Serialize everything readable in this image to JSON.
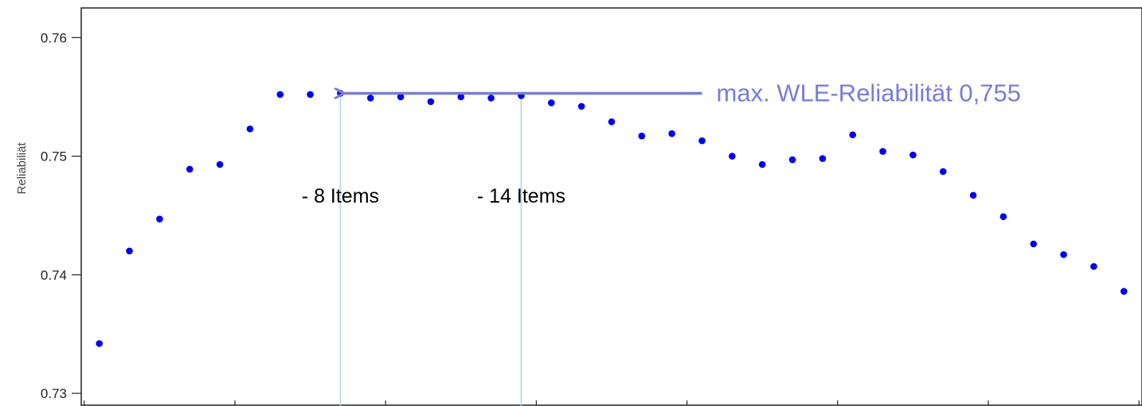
{
  "chart_data": {
    "type": "scatter",
    "xlabel": "",
    "ylabel": "Reliabiliät",
    "ylim": [
      0.729,
      0.7625
    ],
    "xlim": [
      0.4,
      35.6
    ],
    "y_ticks": [
      0.73,
      0.74,
      0.75,
      0.76
    ],
    "y_tick_labels": [
      "0.73",
      "0.74",
      "0.75",
      "0.76"
    ],
    "x_ticks": [
      0.5,
      5.5,
      10.5,
      15.5,
      20.5,
      25.5,
      30.5,
      35.5
    ],
    "grid": false,
    "legend": "none",
    "point_color": "#0000ee",
    "series": [
      {
        "x": [
          1,
          2,
          3,
          4,
          5,
          6,
          7,
          8,
          9,
          10,
          11,
          12,
          13,
          14,
          15,
          16,
          17,
          18,
          19,
          20,
          21,
          22,
          23,
          24,
          25,
          26,
          27,
          28,
          29,
          30,
          31,
          32,
          33,
          34,
          35
        ],
        "values": [
          0.7342,
          0.742,
          0.7447,
          0.7489,
          0.7493,
          0.7523,
          0.7552,
          0.7552,
          0.7553,
          0.7549,
          0.755,
          0.7546,
          0.755,
          0.7549,
          0.7551,
          0.7545,
          0.7542,
          0.7529,
          0.7517,
          0.7519,
          0.7513,
          0.75,
          0.7493,
          0.7497,
          0.7498,
          0.7518,
          0.7504,
          0.7501,
          0.7487,
          0.7467,
          0.7449,
          0.7426,
          0.7417,
          0.7407,
          0.7386
        ]
      }
    ],
    "reference_lines": [
      {
        "x": 9,
        "color": "#add8e6",
        "label": "- 8 Items",
        "label_y": 0.7467
      },
      {
        "x": 15,
        "color": "#add8e6",
        "label": "- 14 Items",
        "label_y": 0.7467
      }
    ],
    "max_annotation": {
      "text": "max. WLE-Reliabilität 0,755",
      "color": "#7b7bd6",
      "arrow_from_x": 21,
      "arrow_to_x": 9,
      "y": 0.7553
    }
  }
}
